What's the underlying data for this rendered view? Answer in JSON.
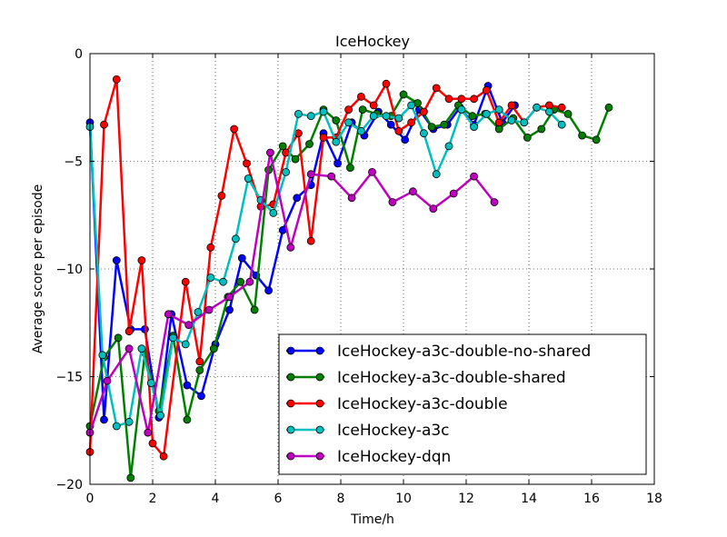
{
  "chart_data": {
    "type": "line",
    "title": "IceHockey",
    "xlabel": "Time/h",
    "ylabel": "Average score per episode",
    "xlim": [
      0,
      18
    ],
    "ylim": [
      -20,
      0
    ],
    "xticks": [
      0,
      2,
      4,
      6,
      8,
      10,
      12,
      14,
      16,
      18
    ],
    "yticks": [
      0,
      -5,
      -10,
      -15,
      -20
    ],
    "xtick_labels": [
      "0",
      "2",
      "4",
      "6",
      "8",
      "10",
      "12",
      "14",
      "16",
      "18"
    ],
    "ytick_labels": [
      "0",
      "−5",
      "−10",
      "−15",
      "−20"
    ],
    "grid": true,
    "legend_position": "lower-right",
    "series": [
      {
        "name": "IceHockey-a3c-double-no-shared",
        "color": "#0000ff",
        "x": [
          0,
          0.45,
          0.85,
          1.3,
          1.75,
          2.2,
          2.6,
          3.1,
          3.55,
          4.0,
          4.45,
          4.85,
          5.3,
          5.7,
          6.15,
          6.6,
          7.05,
          7.45,
          7.9,
          8.35,
          8.75,
          9.2,
          9.6,
          10.05,
          10.5,
          10.95,
          11.4,
          11.8,
          12.25,
          12.7,
          13.15,
          13.55
        ],
        "y": [
          -3.2,
          -17.0,
          -9.6,
          -12.8,
          -12.8,
          -16.9,
          -12.1,
          -15.4,
          -15.9,
          -13.5,
          -11.9,
          -9.5,
          -10.3,
          -11.0,
          -8.2,
          -6.7,
          -6.1,
          -3.7,
          -5.1,
          -3.2,
          -3.8,
          -2.7,
          -3.3,
          -4.0,
          -2.6,
          -3.5,
          -3.3,
          -2.5,
          -3.3,
          -1.5,
          -3.2,
          -2.4
        ]
      },
      {
        "name": "IceHockey-a3c-double-shared",
        "color": "#008000",
        "x": [
          0,
          0.45,
          0.9,
          1.3,
          1.75,
          2.2,
          2.65,
          3.1,
          3.5,
          3.95,
          4.4,
          4.8,
          5.25,
          5.7,
          6.15,
          6.55,
          7.0,
          7.45,
          7.85,
          8.3,
          8.7,
          9.15,
          9.6,
          10.0,
          10.45,
          10.9,
          11.3,
          11.75,
          12.2,
          12.6,
          13.05,
          13.5,
          13.95,
          14.4,
          14.8,
          15.25,
          15.7,
          16.15,
          16.55
        ],
        "y": [
          -17.3,
          -14.1,
          -13.2,
          -19.7,
          -13.9,
          -16.6,
          -13.1,
          -17.0,
          -14.7,
          -13.7,
          -11.3,
          -10.6,
          -11.9,
          -5.4,
          -4.3,
          -4.9,
          -4.2,
          -2.6,
          -3.1,
          -5.3,
          -2.6,
          -2.8,
          -2.9,
          -1.9,
          -2.3,
          -3.4,
          -3.3,
          -2.4,
          -2.9,
          -2.8,
          -3.5,
          -3.0,
          -3.9,
          -3.5,
          -2.6,
          -2.8,
          -3.8,
          -4.0,
          -2.5
        ]
      },
      {
        "name": "IceHockey-a3c-double",
        "color": "#ff0000",
        "x": [
          0,
          0.45,
          0.85,
          1.25,
          1.65,
          2.0,
          2.35,
          3.05,
          3.5,
          3.85,
          4.2,
          4.6,
          5.0,
          5.45,
          5.85,
          6.25,
          6.65,
          7.05,
          7.45,
          7.85,
          8.25,
          8.65,
          9.05,
          9.45,
          9.85,
          10.25,
          10.65,
          11.05,
          11.45,
          11.85,
          12.25,
          12.65,
          13.05,
          13.45,
          13.85,
          14.25,
          14.65,
          15.05
        ],
        "y": [
          -18.5,
          -3.3,
          -1.2,
          -12.9,
          -9.6,
          -18.1,
          -18.7,
          -10.6,
          -14.3,
          -9.0,
          -6.6,
          -3.5,
          -5.1,
          -7.1,
          -7.0,
          -4.6,
          -3.7,
          -8.7,
          -3.9,
          -3.9,
          -2.6,
          -2.0,
          -2.4,
          -1.4,
          -3.6,
          -3.2,
          -2.7,
          -1.6,
          -2.1,
          -2.1,
          -2.1,
          -1.7,
          -3.2,
          -2.4,
          -3.2,
          -2.5,
          -2.4,
          -2.5
        ]
      },
      {
        "name": "IceHockey-a3c",
        "color": "#00bfbf",
        "x": [
          0,
          0.4,
          0.85,
          1.25,
          1.65,
          1.95,
          2.25,
          2.65,
          3.05,
          3.45,
          3.85,
          4.25,
          4.65,
          5.05,
          5.45,
          5.85,
          6.25,
          6.65,
          7.05,
          7.45,
          7.85,
          8.25,
          8.65,
          9.05,
          9.45,
          9.85,
          10.25,
          10.65,
          11.05,
          11.45,
          11.85,
          12.25,
          12.65,
          13.05,
          13.45,
          13.85,
          14.25,
          14.65,
          15.05
        ],
        "y": [
          -3.4,
          -14.0,
          -17.3,
          -17.1,
          -13.7,
          -15.3,
          -16.8,
          -13.2,
          -13.5,
          -12.0,
          -10.4,
          -10.6,
          -8.6,
          -5.8,
          -6.8,
          -7.4,
          -5.5,
          -2.8,
          -2.9,
          -2.7,
          -4.1,
          -3.2,
          -3.6,
          -2.9,
          -2.9,
          -3.0,
          -2.4,
          -3.7,
          -5.6,
          -4.3,
          -2.6,
          -3.4,
          -2.8,
          -2.6,
          -3.1,
          -3.2,
          -2.5,
          -2.7,
          -3.3
        ]
      },
      {
        "name": "IceHockey-dqn",
        "color": "#bf00bf",
        "x": [
          0,
          0.55,
          1.25,
          1.85,
          2.5,
          3.15,
          3.8,
          4.45,
          5.1,
          5.75,
          6.4,
          7.05,
          7.7,
          8.35,
          9.0,
          9.65,
          10.3,
          10.95,
          11.6,
          12.25,
          12.9
        ],
        "y": [
          -17.6,
          -15.2,
          -13.7,
          -17.6,
          -12.1,
          -12.6,
          -11.9,
          -11.3,
          -10.6,
          -4.6,
          -9.0,
          -5.6,
          -5.7,
          -6.7,
          -5.5,
          -6.9,
          -6.4,
          -7.2,
          -6.5,
          -5.7,
          -6.9
        ]
      }
    ]
  }
}
